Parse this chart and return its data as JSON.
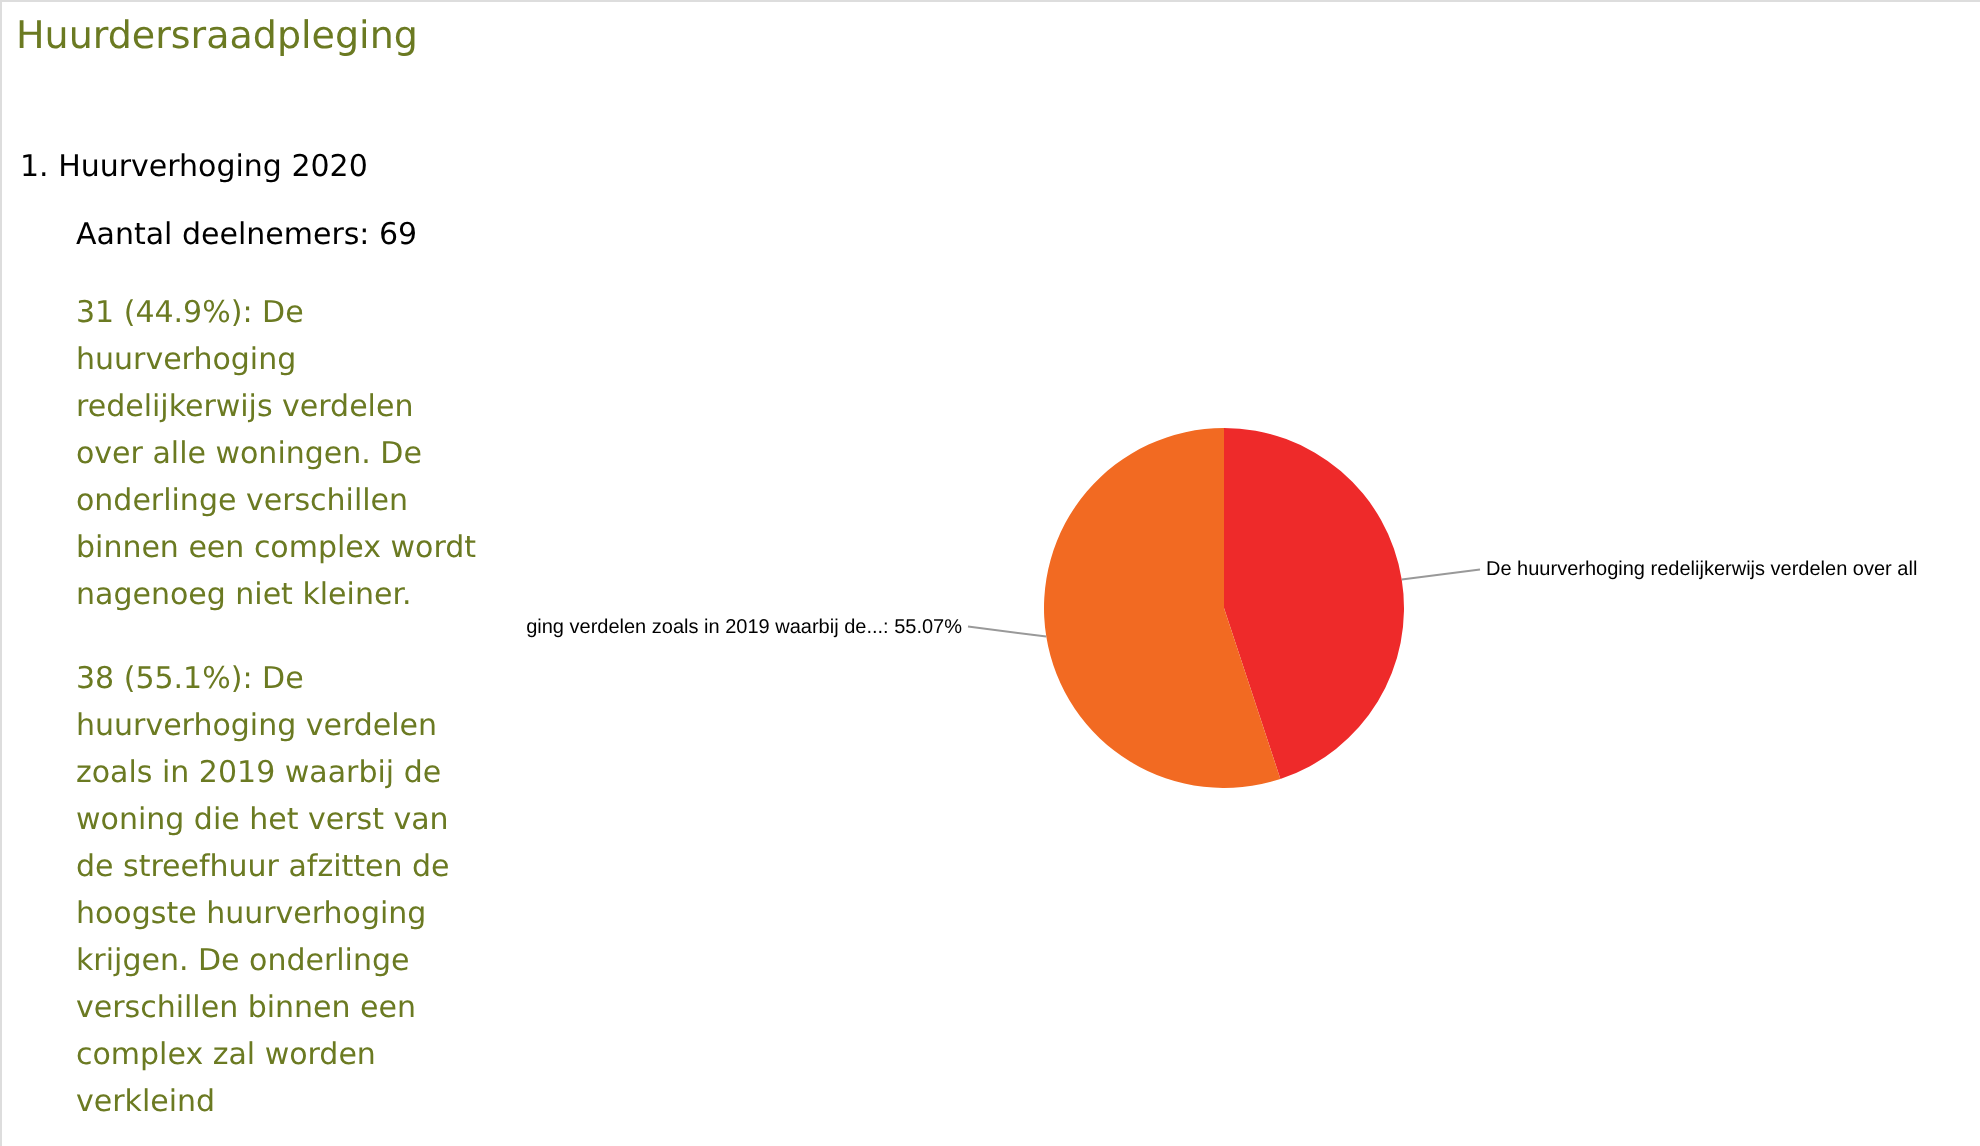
{
  "chart_data": {
    "type": "pie",
    "title": "Huurdersraadpleging",
    "subtitle": "1. Huurverhoging 2020",
    "categories": [
      "De huurverhoging redelijkerwijs verdelen over all",
      "ging verdelen zoals in 2019 waarbij de...: 55.07%"
    ],
    "values": [
      44.93,
      55.07
    ],
    "colors": [
      "#ee2a2a",
      "#f26a22"
    ],
    "annotations": [
      "Aantal deelnemers: 69",
      "31 (44.9%): De huurverhoging redelijkerwijs verdelen over alle woningen. De onderlinge verschillen binnen een complex wordt nagenoeg niet kleiner.",
      "38 (55.1%): De huurverhoging verdelen zoals in 2019 waarbij de woning die het verst van de streefhuur afzitten de hoogste huurverhoging krijgen. De onderlinge verschillen binnen een complex zal worden verkleind"
    ],
    "data_labels": false
  }
}
